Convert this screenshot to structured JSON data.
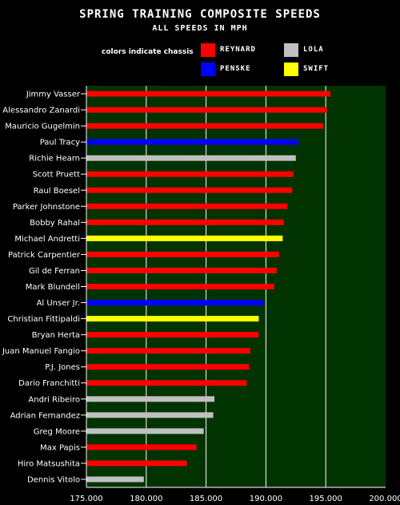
{
  "chart_data": {
    "type": "bar",
    "orientation": "horizontal",
    "title": "SPRING TRAINING COMPOSITE SPEEDS",
    "subtitle": "ALL SPEEDS IN MPH",
    "legend_note": "colors indicate chassis",
    "legend": [
      {
        "name": "REYNARD",
        "color": "#ff0000"
      },
      {
        "name": "LOLA",
        "color": "#c0c0c0"
      },
      {
        "name": "PENSKE",
        "color": "#0000ff"
      },
      {
        "name": "SWIFT",
        "color": "#ffff00"
      }
    ],
    "categories": [
      "Jimmy Vasser",
      "Alessandro Zanardi",
      "Mauricio Gugelmin",
      "Paul Tracy",
      "Richie Hearn",
      "Scott Pruett",
      "Raul Boesel",
      "Parker Johnstone",
      "Bobby Rahal",
      "Michael Andretti",
      "Patrick Carpentier",
      "Gil de Ferran",
      "Mark Blundell",
      "Al Unser Jr.",
      "Christian Fittipaldi",
      "Bryan Herta",
      "Juan Manuel Fangio",
      "P.J. Jones",
      "Dario Franchitti",
      "Andri Ribeiro",
      "Adrian Fernandez",
      "Greg Moore",
      "Max Papis",
      "Hiro Matsushita",
      "Dennis Vitolo"
    ],
    "values": [
      195.4,
      195.1,
      194.8,
      192.7,
      192.5,
      192.3,
      192.2,
      191.8,
      191.5,
      191.4,
      191.1,
      190.9,
      190.7,
      189.8,
      189.4,
      189.4,
      188.7,
      188.6,
      188.4,
      185.7,
      185.6,
      184.8,
      184.2,
      183.4,
      179.8
    ],
    "chassis": [
      "REYNARD",
      "REYNARD",
      "REYNARD",
      "PENSKE",
      "LOLA",
      "REYNARD",
      "REYNARD",
      "REYNARD",
      "REYNARD",
      "SWIFT",
      "REYNARD",
      "REYNARD",
      "REYNARD",
      "PENSKE",
      "SWIFT",
      "REYNARD",
      "REYNARD",
      "REYNARD",
      "REYNARD",
      "LOLA",
      "LOLA",
      "LOLA",
      "REYNARD",
      "REYNARD",
      "LOLA"
    ],
    "xlim": [
      175,
      200
    ],
    "x_ticks": [
      "175.000",
      "180.000",
      "185.000",
      "190.000",
      "195.000",
      "200.000"
    ],
    "grid": true,
    "plot_background": "#003300",
    "grid_color": "#ffffff"
  }
}
